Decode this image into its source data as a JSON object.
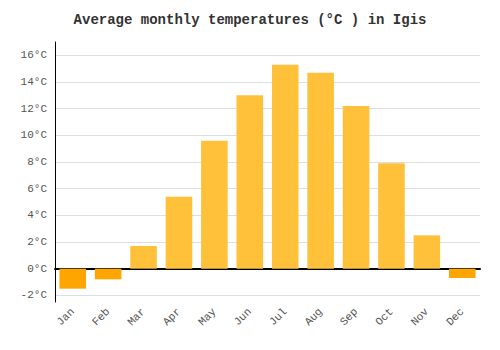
{
  "chart_data": {
    "type": "bar",
    "title": "Average monthly temperatures (°C ) in Igis",
    "categories": [
      "Jan",
      "Feb",
      "Mar",
      "Apr",
      "May",
      "Jun",
      "Jul",
      "Aug",
      "Sep",
      "Oct",
      "Nov",
      "Dec"
    ],
    "values": [
      -1.5,
      -0.8,
      1.7,
      5.4,
      9.6,
      13.0,
      15.3,
      14.7,
      12.2,
      7.9,
      2.5,
      -0.7
    ],
    "colors": [
      "#FFA500",
      "#FFA500",
      "#FFC03A",
      "#FFC03A",
      "#FFC03A",
      "#FFC03A",
      "#FFC03A",
      "#FFC03A",
      "#FFC03A",
      "#FFC03A",
      "#FFC03A",
      "#FFA500"
    ],
    "ylim": [
      -2.5,
      17.0
    ],
    "yticks": [
      {
        "value": -2,
        "label": "-2°C"
      },
      {
        "value": 0,
        "label": "0°C"
      },
      {
        "value": 2,
        "label": "2°C"
      },
      {
        "value": 4,
        "label": "4°C"
      },
      {
        "value": 6,
        "label": "6°C"
      },
      {
        "value": 8,
        "label": "8°C"
      },
      {
        "value": 10,
        "label": "10°C"
      },
      {
        "value": 12,
        "label": "12°C"
      },
      {
        "value": 14,
        "label": "14°C"
      },
      {
        "value": 16,
        "label": "16°C"
      }
    ],
    "grid": true
  }
}
